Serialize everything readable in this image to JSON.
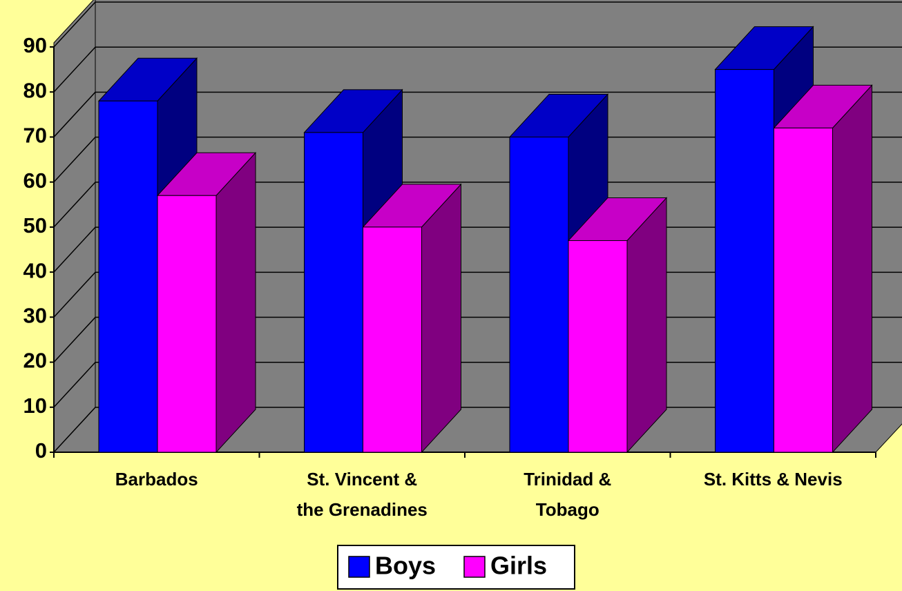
{
  "chart_data": {
    "type": "bar3d",
    "categories": [
      [
        "Barbados"
      ],
      [
        "St. Vincent &",
        "the Grenadines"
      ],
      [
        "Trinidad &",
        "Tobago"
      ],
      [
        "St. Kitts & Nevis"
      ]
    ],
    "series": [
      {
        "name": "Boys",
        "color": "#0000ff",
        "values": [
          78,
          71,
          70,
          85
        ]
      },
      {
        "name": "Girls",
        "color": "#ff00ff",
        "values": [
          57,
          50,
          47,
          72
        ]
      }
    ],
    "ylim": [
      0,
      90
    ],
    "yticks": [
      0,
      10,
      20,
      30,
      40,
      50,
      60,
      70,
      80,
      90
    ],
    "grid": true,
    "legend": "bottom"
  }
}
